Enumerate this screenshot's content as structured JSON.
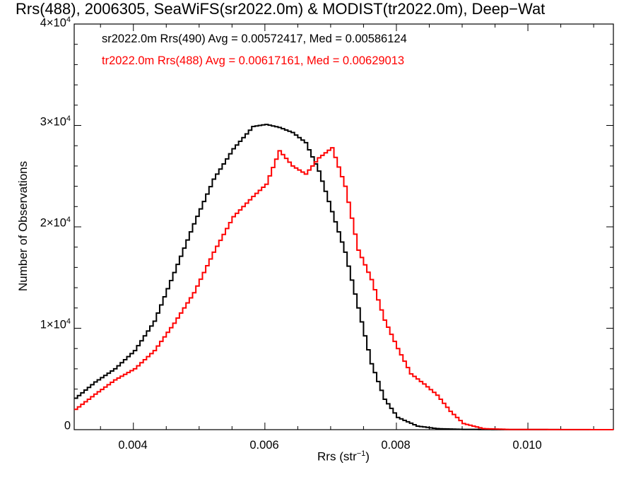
{
  "title": "Rrs(488), 2006305, SeaWiFS(sr2022.0m) & MODIST(tr2022.0m), Deep−Wat",
  "annotations": [
    {
      "text": "sr2022.0m Rrs(490) Avg = 0.00572417, Med = 0.00586124",
      "color": "#000000"
    },
    {
      "text": "tr2022.0m Rrs(488) Avg = 0.00617161, Med = 0.00629013",
      "color": "#ff0000"
    }
  ],
  "xlabel": {
    "text": "Rrs (str",
    "sup": "−1",
    "close": ")"
  },
  "ylabel": "Number of Observations",
  "yticks": [
    {
      "label": "0",
      "exp": ""
    },
    {
      "label": "1×10",
      "exp": "4"
    },
    {
      "label": "2×10",
      "exp": "4"
    },
    {
      "label": "3×10",
      "exp": "4"
    },
    {
      "label": "4×10",
      "exp": "4"
    }
  ],
  "xticks": [
    "0.004",
    "0.006",
    "0.008",
    "0.010"
  ],
  "chart_data": {
    "type": "line",
    "step": true,
    "title": "Rrs(488), 2006305, SeaWiFS(sr2022.0m) & MODIST(tr2022.0m), Deep−Wat",
    "xlabel": "Rrs (str⁻¹)",
    "ylabel": "Number of Observations",
    "xlim": [
      0.0031,
      0.0113
    ],
    "ylim": [
      0,
      40000
    ],
    "xtick_values": [
      0.004,
      0.006,
      0.008,
      0.01
    ],
    "ytick_values": [
      0,
      10000,
      20000,
      30000,
      40000
    ],
    "grid": false,
    "series": [
      {
        "name": "sr2022.0m Rrs(490)",
        "color": "#000000",
        "points": [
          [
            0.0031,
            3100
          ],
          [
            0.0034,
            4700
          ],
          [
            0.0037,
            6000
          ],
          [
            0.004,
            7800
          ],
          [
            0.0043,
            10700
          ],
          [
            0.0046,
            15500
          ],
          [
            0.0049,
            20300
          ],
          [
            0.0052,
            24700
          ],
          [
            0.0055,
            27700
          ],
          [
            0.0058,
            29900
          ],
          [
            0.006,
            30100
          ],
          [
            0.0062,
            29800
          ],
          [
            0.0064,
            29300
          ],
          [
            0.0066,
            28300
          ],
          [
            0.0068,
            25500
          ],
          [
            0.007,
            21500
          ],
          [
            0.0072,
            17500
          ],
          [
            0.0074,
            12000
          ],
          [
            0.0076,
            6500
          ],
          [
            0.0078,
            3000
          ],
          [
            0.008,
            1200
          ],
          [
            0.0083,
            350
          ],
          [
            0.0086,
            100
          ],
          [
            0.009,
            30
          ],
          [
            0.0095,
            10
          ],
          [
            0.0113,
            0
          ]
        ]
      },
      {
        "name": "tr2022.0m Rrs(488)",
        "color": "#ff0000",
        "points": [
          [
            0.0031,
            2000
          ],
          [
            0.0034,
            3500
          ],
          [
            0.0037,
            4900
          ],
          [
            0.004,
            6000
          ],
          [
            0.0043,
            7800
          ],
          [
            0.0046,
            10500
          ],
          [
            0.0049,
            13500
          ],
          [
            0.0052,
            17500
          ],
          [
            0.0055,
            21000
          ],
          [
            0.0058,
            23000
          ],
          [
            0.006,
            24200
          ],
          [
            0.0062,
            27500
          ],
          [
            0.0064,
            26000
          ],
          [
            0.0066,
            25200
          ],
          [
            0.0068,
            26800
          ],
          [
            0.007,
            27800
          ],
          [
            0.0072,
            24000
          ],
          [
            0.0074,
            17700
          ],
          [
            0.0076,
            14800
          ],
          [
            0.0078,
            10800
          ],
          [
            0.008,
            8000
          ],
          [
            0.0082,
            5500
          ],
          [
            0.0084,
            4500
          ],
          [
            0.0086,
            3400
          ],
          [
            0.0088,
            1800
          ],
          [
            0.009,
            600
          ],
          [
            0.0093,
            100
          ],
          [
            0.0097,
            20
          ],
          [
            0.0113,
            0
          ]
        ]
      }
    ]
  }
}
